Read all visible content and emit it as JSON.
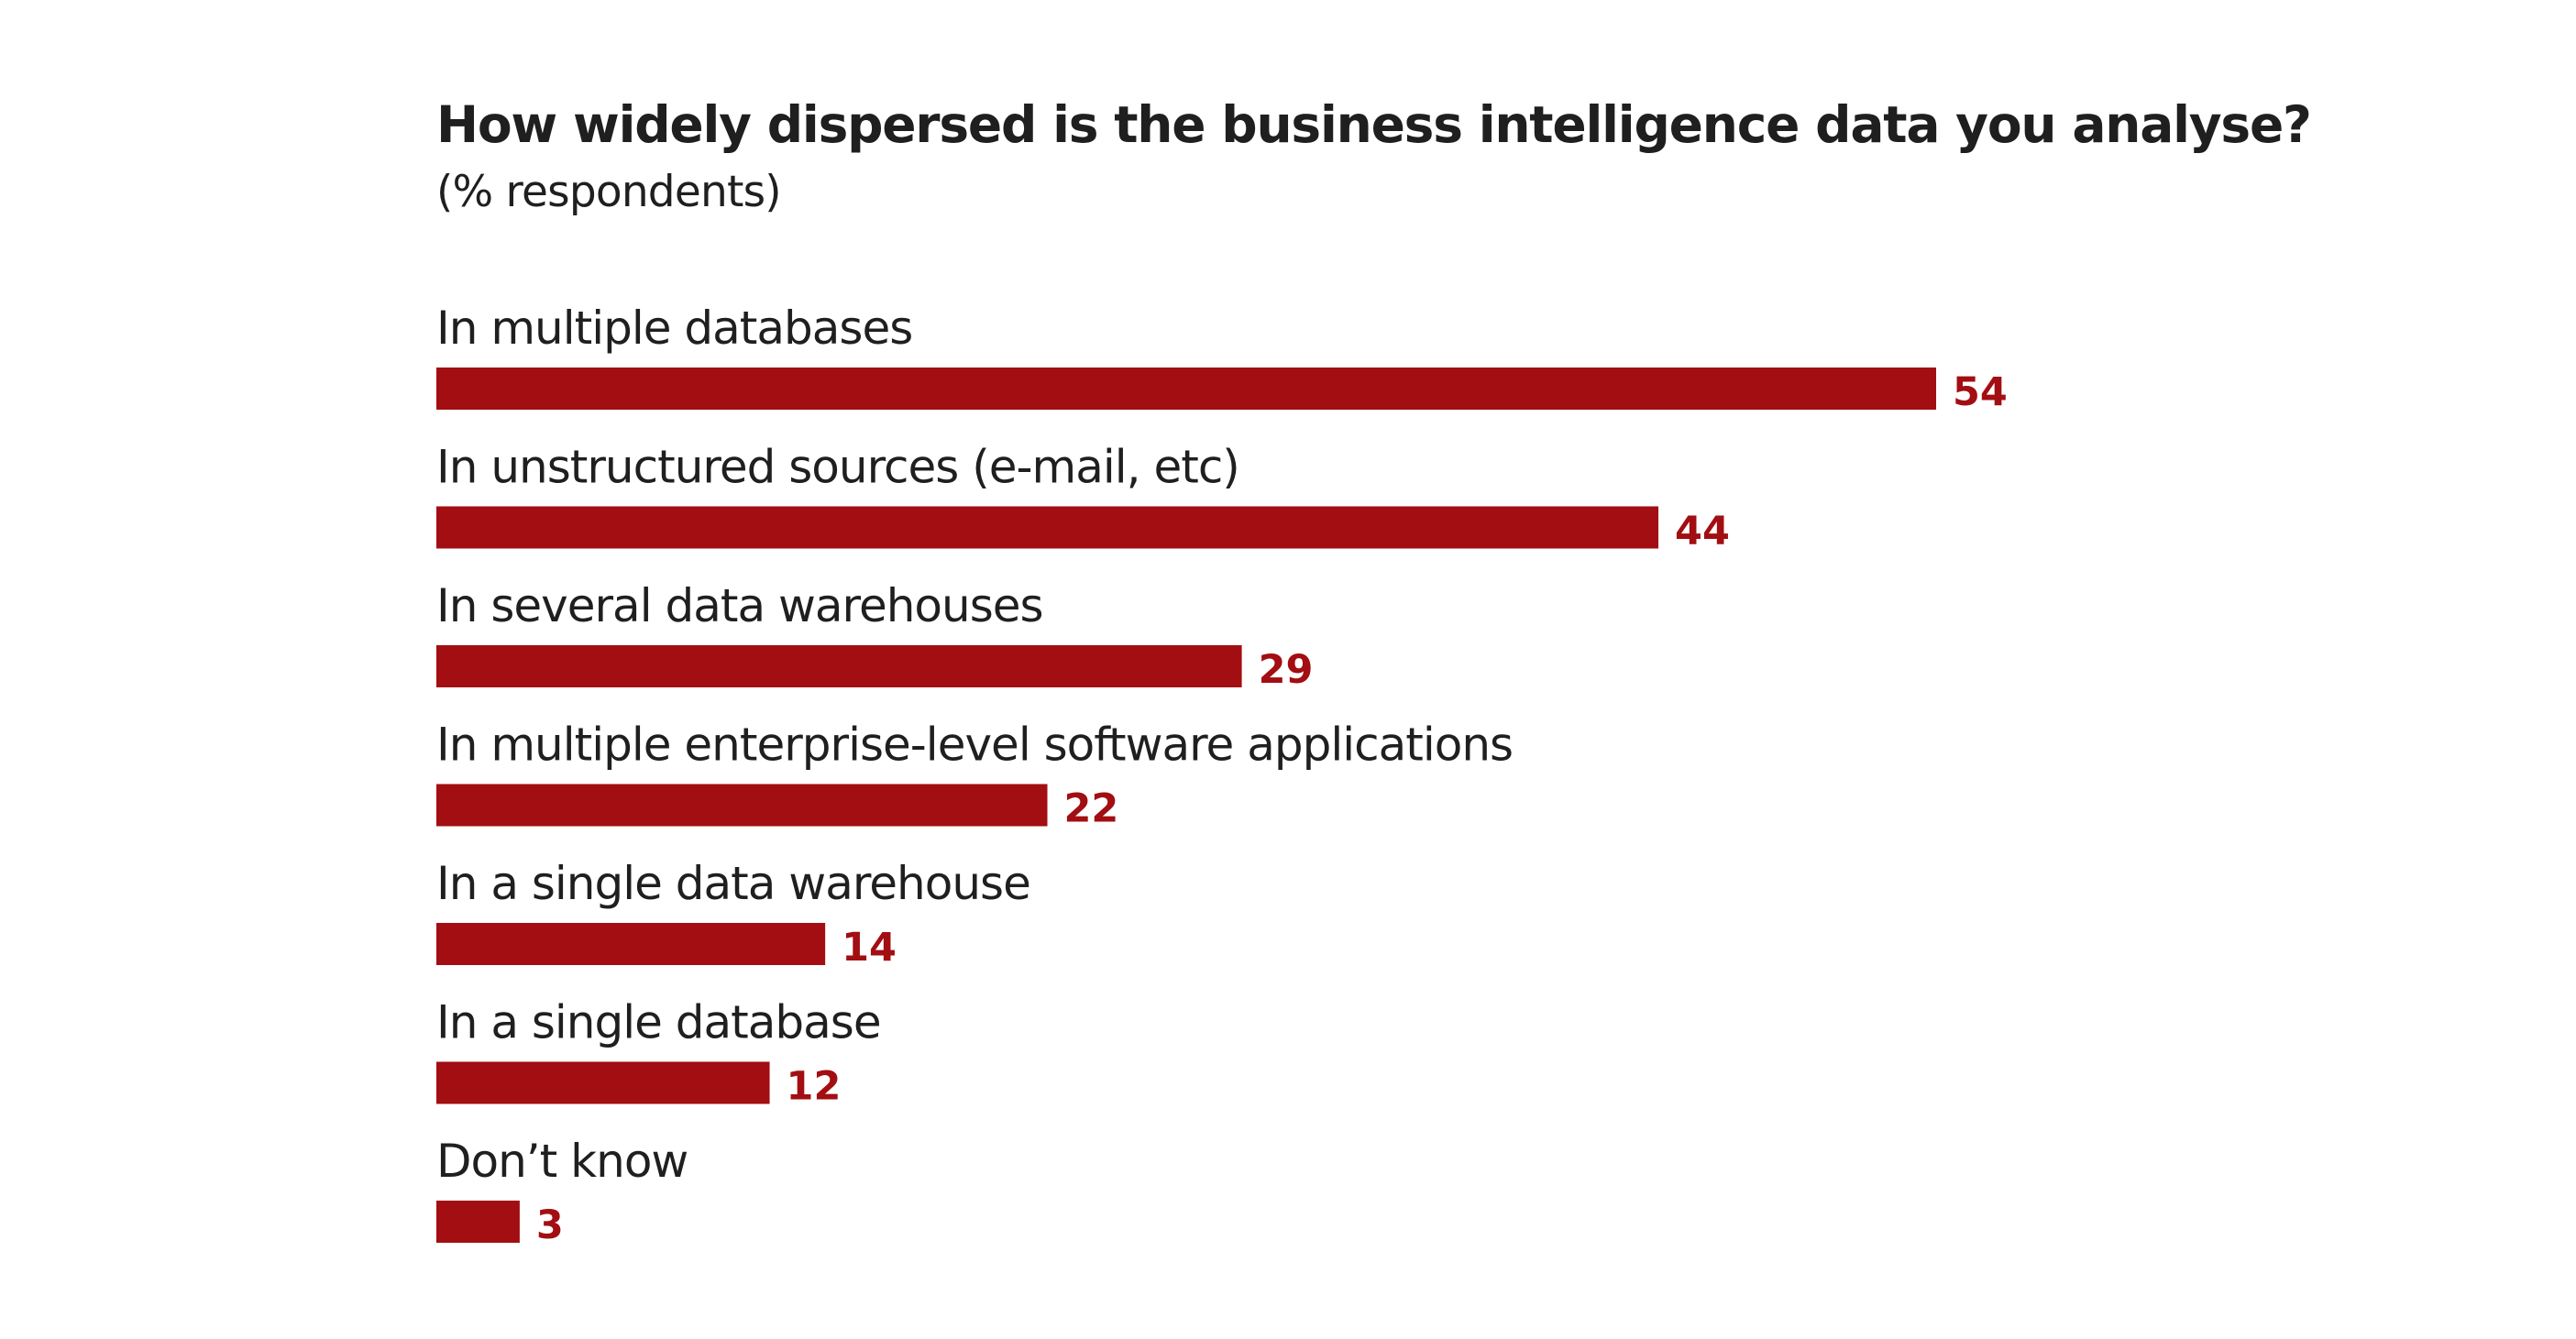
{
  "colors": {
    "bar": "#a20e12",
    "value_label": "#a20e12",
    "text": "#1f1f1f",
    "background": "#ffffff"
  },
  "chart_data": {
    "type": "bar",
    "orientation": "horizontal",
    "title": "How widely dispersed is the business intelligence data you analyse?",
    "subtitle": "(% respondents)",
    "categories": [
      "In multiple databases",
      "In unstructured sources (e-mail, etc)",
      "In several data warehouses",
      "In multiple enterprise-level software applications",
      "In a single data warehouse",
      "In a single database",
      "Don’t know"
    ],
    "values": [
      54,
      44,
      29,
      22,
      14,
      12,
      3
    ],
    "xlim": [
      0,
      54
    ],
    "grid": false,
    "legend": "none",
    "data_labels": true
  }
}
